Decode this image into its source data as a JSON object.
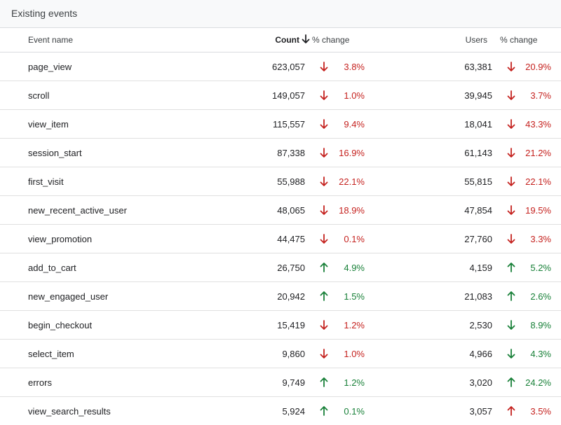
{
  "card": {
    "title": "Existing events"
  },
  "columns": {
    "event_name": "Event name",
    "count": "Count",
    "count_change": "% change",
    "users": "Users",
    "users_change": "% change"
  },
  "sort": {
    "column": "count",
    "direction": "descending",
    "icon": "arrow-down-icon"
  },
  "colors": {
    "negative": "#c5221f",
    "positive": "#188038"
  },
  "rows": [
    {
      "name": "page_view",
      "count": "623,057",
      "count_dir": "down",
      "count_tone": "neg",
      "count_change": "3.8%",
      "users": "63,381",
      "users_dir": "down",
      "users_tone": "neg",
      "users_change": "20.9%"
    },
    {
      "name": "scroll",
      "count": "149,057",
      "count_dir": "down",
      "count_tone": "neg",
      "count_change": "1.0%",
      "users": "39,945",
      "users_dir": "down",
      "users_tone": "neg",
      "users_change": "3.7%"
    },
    {
      "name": "view_item",
      "count": "115,557",
      "count_dir": "down",
      "count_tone": "neg",
      "count_change": "9.4%",
      "users": "18,041",
      "users_dir": "down",
      "users_tone": "neg",
      "users_change": "43.3%"
    },
    {
      "name": "session_start",
      "count": "87,338",
      "count_dir": "down",
      "count_tone": "neg",
      "count_change": "16.9%",
      "users": "61,143",
      "users_dir": "down",
      "users_tone": "neg",
      "users_change": "21.2%"
    },
    {
      "name": "first_visit",
      "count": "55,988",
      "count_dir": "down",
      "count_tone": "neg",
      "count_change": "22.1%",
      "users": "55,815",
      "users_dir": "down",
      "users_tone": "neg",
      "users_change": "22.1%"
    },
    {
      "name": "new_recent_active_user",
      "count": "48,065",
      "count_dir": "down",
      "count_tone": "neg",
      "count_change": "18.9%",
      "users": "47,854",
      "users_dir": "down",
      "users_tone": "neg",
      "users_change": "19.5%"
    },
    {
      "name": "view_promotion",
      "count": "44,475",
      "count_dir": "down",
      "count_tone": "neg",
      "count_change": "0.1%",
      "users": "27,760",
      "users_dir": "down",
      "users_tone": "neg",
      "users_change": "3.3%"
    },
    {
      "name": "add_to_cart",
      "count": "26,750",
      "count_dir": "up",
      "count_tone": "pos",
      "count_change": "4.9%",
      "users": "4,159",
      "users_dir": "up",
      "users_tone": "pos",
      "users_change": "5.2%"
    },
    {
      "name": "new_engaged_user",
      "count": "20,942",
      "count_dir": "up",
      "count_tone": "pos",
      "count_change": "1.5%",
      "users": "21,083",
      "users_dir": "up",
      "users_tone": "pos",
      "users_change": "2.6%"
    },
    {
      "name": "begin_checkout",
      "count": "15,419",
      "count_dir": "down",
      "count_tone": "neg",
      "count_change": "1.2%",
      "users": "2,530",
      "users_dir": "down",
      "users_tone": "pos",
      "users_change": "8.9%"
    },
    {
      "name": "select_item",
      "count": "9,860",
      "count_dir": "down",
      "count_tone": "neg",
      "count_change": "1.0%",
      "users": "4,966",
      "users_dir": "down",
      "users_tone": "pos",
      "users_change": "4.3%"
    },
    {
      "name": "errors",
      "count": "9,749",
      "count_dir": "up",
      "count_tone": "pos",
      "count_change": "1.2%",
      "users": "3,020",
      "users_dir": "up",
      "users_tone": "pos",
      "users_change": "24.2%"
    },
    {
      "name": "view_search_results",
      "count": "5,924",
      "count_dir": "up",
      "count_tone": "pos",
      "count_change": "0.1%",
      "users": "3,057",
      "users_dir": "up",
      "users_tone": "neg",
      "users_change": "3.5%"
    }
  ]
}
